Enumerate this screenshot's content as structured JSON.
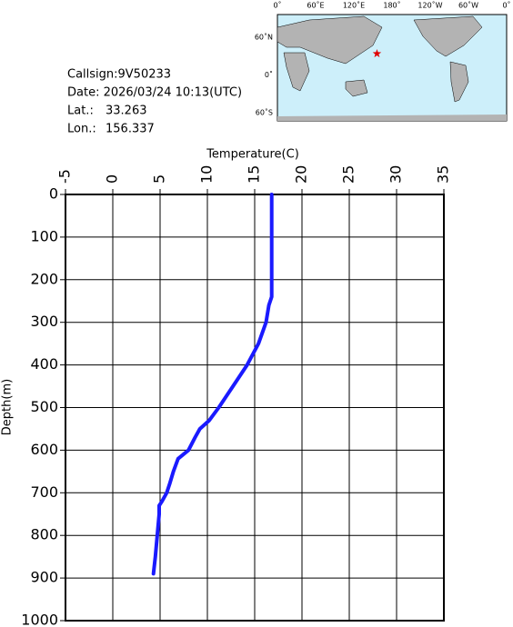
{
  "info": {
    "callsign": "Callsign:9V50233",
    "date": "Date:  2026/03/24 10:13(UTC)",
    "lat_label": "Lat.:",
    "lat": 33.263,
    "lon_label": "Lon.:",
    "lon": 156.337
  },
  "map": {
    "lon_labels": [
      "0˚",
      "60˚E",
      "120˚E",
      "180˚",
      "120˚W",
      "60˚W",
      "0˚"
    ],
    "lat_labels": [
      "60˚N",
      "0˚",
      "60˚S"
    ]
  },
  "chart_data": {
    "type": "line",
    "x_label": "Temperature(C)",
    "y_label": "Depth(m)",
    "xlim": [
      -5,
      35
    ],
    "xticks": [
      -5,
      0,
      5,
      10,
      15,
      20,
      25,
      30,
      35
    ],
    "ylim": [
      0,
      1000
    ],
    "y_inverted": true,
    "yticks": [
      0,
      100,
      200,
      300,
      400,
      500,
      600,
      700,
      800,
      900,
      1000
    ],
    "grid": true,
    "color": "#1a1aff",
    "x": [
      16.8,
      16.8,
      16.8,
      16.8,
      16.5,
      16.2,
      15.4,
      14.2,
      12.7,
      11.2,
      10.2,
      9.2,
      8.7,
      8.0,
      6.9,
      6.4,
      6.0,
      5.7,
      5.2,
      4.9,
      4.9,
      4.7,
      4.5,
      4.3
    ],
    "values": [
      0,
      100,
      200,
      240,
      260,
      300,
      350,
      400,
      450,
      500,
      530,
      550,
      570,
      600,
      620,
      650,
      680,
      700,
      720,
      730,
      750,
      800,
      850,
      890
    ]
  }
}
